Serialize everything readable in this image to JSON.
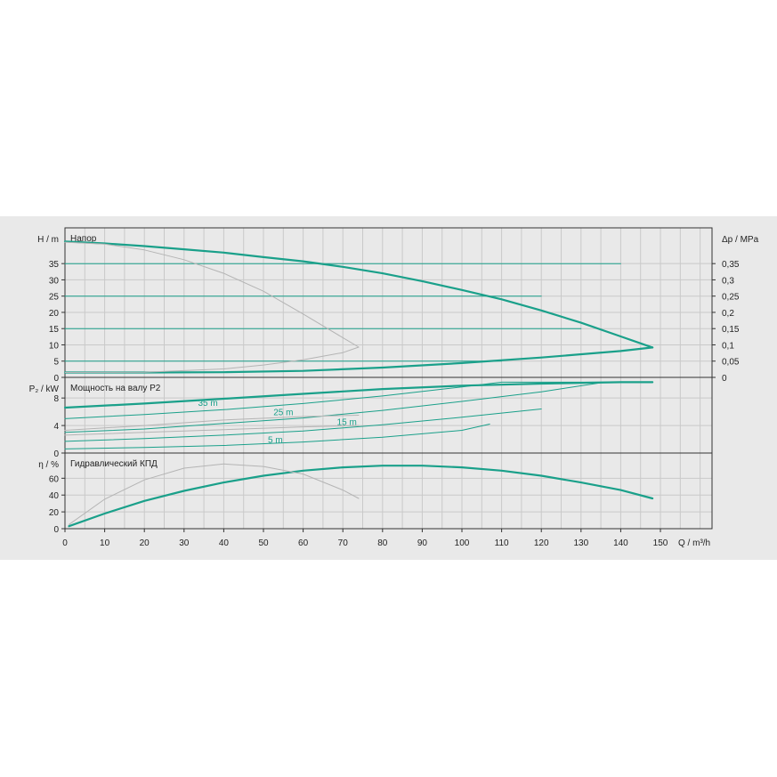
{
  "colors": {
    "accent": "#1aa08a",
    "secondary": "#b4b4b4",
    "grid": "#c9c9c9",
    "frame": "#333333",
    "background": "#e9e9e9"
  },
  "chart_data": [
    {
      "type": "line",
      "title": "Напор",
      "ylabel": "H / m",
      "ylabel_right": "Δp / MPa",
      "xlim": [
        0,
        163
      ],
      "ylim": [
        0,
        46
      ],
      "yticks": [
        0,
        5,
        10,
        15,
        20,
        25,
        30,
        35
      ],
      "yticks_right": [
        "0",
        "0,05",
        "0,1",
        "0,15",
        "0,2",
        "0,25",
        "0,3",
        "0,35"
      ],
      "series": [
        {
          "role": "max",
          "color": "accent",
          "width": 2.2,
          "x": [
            0,
            10,
            20,
            30,
            40,
            50,
            60,
            70,
            80,
            90,
            100,
            110,
            120,
            130,
            140,
            148
          ],
          "y": [
            41.8,
            41.2,
            40.4,
            39.4,
            38.4,
            37.0,
            35.7,
            34.0,
            32.0,
            29.6,
            26.9,
            24.0,
            20.6,
            16.8,
            12.6,
            9.2
          ]
        },
        {
          "role": "min",
          "color": "accent",
          "width": 2.2,
          "x": [
            0,
            20,
            40,
            60,
            80,
            100,
            120,
            140,
            148
          ],
          "y": [
            1.5,
            1.5,
            1.6,
            2.0,
            3.0,
            4.4,
            6.1,
            8.1,
            9.2
          ]
        },
        {
          "role": "h35",
          "color": "accent",
          "width": 1,
          "x": [
            0,
            10,
            20,
            30,
            40,
            50,
            60,
            70,
            80,
            90,
            100,
            110,
            120,
            130,
            140
          ],
          "y": [
            35,
            35,
            35,
            35,
            35,
            35,
            35,
            35,
            35,
            35,
            35,
            35,
            35,
            35,
            35
          ]
        },
        {
          "role": "h25",
          "color": "accent",
          "width": 1,
          "x": [
            0,
            10,
            20,
            30,
            40,
            50,
            60,
            70,
            80,
            90,
            100,
            110,
            120
          ],
          "y": [
            25,
            25,
            25,
            25,
            25,
            25,
            25,
            25,
            25,
            25,
            25,
            25,
            25
          ]
        },
        {
          "role": "h15",
          "color": "accent",
          "width": 1,
          "x": [
            0,
            10,
            20,
            30,
            40,
            50,
            60,
            70,
            80,
            90,
            100,
            110,
            120,
            130
          ],
          "y": [
            15,
            15,
            15,
            15,
            15,
            15,
            15,
            15,
            15,
            15,
            15,
            15,
            15,
            15
          ]
        },
        {
          "role": "h5",
          "color": "accent",
          "width": 1,
          "x": [
            0,
            10,
            20,
            30,
            40,
            50,
            60,
            70,
            80,
            90,
            100,
            110
          ],
          "y": [
            5,
            5,
            5,
            5,
            5,
            5,
            5,
            5,
            5,
            5,
            5,
            5
          ]
        },
        {
          "role": "gray-upper",
          "color": "secondary",
          "width": 1,
          "x": [
            0,
            10,
            20,
            30,
            40,
            50,
            60,
            70,
            74
          ],
          "y": [
            41.6,
            41.0,
            39.2,
            36.2,
            32.0,
            26.5,
            19.5,
            12.2,
            9.3
          ]
        },
        {
          "role": "gray-lower",
          "color": "secondary",
          "width": 1,
          "x": [
            0,
            20,
            40,
            50,
            60,
            70,
            74
          ],
          "y": [
            1.5,
            1.6,
            2.6,
            3.8,
            5.4,
            7.6,
            9.3
          ]
        }
      ]
    },
    {
      "type": "line",
      "title": "Мощность на валу P2",
      "ylabel": "P₂ / kW",
      "xlim": [
        0,
        163
      ],
      "ylim": [
        0,
        11
      ],
      "yticks": [
        0,
        4,
        8
      ],
      "series": [
        {
          "role": "max",
          "color": "accent",
          "width": 2.2,
          "x": [
            0,
            20,
            40,
            60,
            80,
            100,
            120,
            140,
            148
          ],
          "y": [
            6.6,
            7.2,
            7.9,
            8.6,
            9.3,
            9.8,
            10.1,
            10.3,
            10.3
          ]
        },
        {
          "role": "35m",
          "color": "accent",
          "width": 1,
          "x": [
            0,
            20,
            40,
            60,
            80,
            100,
            110,
            130,
            148
          ],
          "y": [
            5.0,
            5.6,
            6.3,
            7.2,
            8.3,
            9.6,
            10.3,
            10.3,
            10.3
          ]
        },
        {
          "role": "25m",
          "color": "accent",
          "width": 1,
          "x": [
            0,
            20,
            40,
            60,
            80,
            100,
            120,
            136
          ],
          "y": [
            3.0,
            3.5,
            4.3,
            5.1,
            6.2,
            7.5,
            8.9,
            10.3
          ]
        },
        {
          "role": "15m",
          "color": "accent",
          "width": 1,
          "x": [
            0,
            20,
            40,
            60,
            80,
            100,
            120
          ],
          "y": [
            1.7,
            2.1,
            2.6,
            3.2,
            4.1,
            5.2,
            6.4
          ]
        },
        {
          "role": "5m",
          "color": "accent",
          "width": 1,
          "x": [
            0,
            20,
            40,
            60,
            80,
            100,
            107
          ],
          "y": [
            0.6,
            0.8,
            1.1,
            1.6,
            2.3,
            3.3,
            4.2
          ]
        },
        {
          "role": "gray-upper",
          "color": "secondary",
          "width": 1,
          "x": [
            0,
            20,
            40,
            60,
            74
          ],
          "y": [
            3.3,
            4.0,
            4.8,
            5.3,
            5.5
          ]
        },
        {
          "role": "gray-lower",
          "color": "secondary",
          "width": 1,
          "x": [
            0,
            20,
            40,
            60,
            74
          ],
          "y": [
            2.6,
            3.0,
            3.4,
            3.8,
            4.0
          ]
        }
      ],
      "curve_labels": [
        {
          "text": "35 m",
          "x": 36,
          "y": 7.4
        },
        {
          "text": "25 m",
          "x": 55,
          "y": 6.0
        },
        {
          "text": "15 m",
          "x": 71,
          "y": 4.6
        },
        {
          "text": "5 m",
          "x": 53,
          "y": 2.0
        }
      ]
    },
    {
      "type": "line",
      "title": "Гидравлический КПД",
      "ylabel": "η / %",
      "xlabel": "Q / m³/h",
      "xlim": [
        0,
        163
      ],
      "ylim": [
        0,
        90
      ],
      "yticks": [
        0,
        20,
        40,
        60
      ],
      "xticks": [
        0,
        10,
        20,
        30,
        40,
        50,
        60,
        70,
        80,
        90,
        100,
        110,
        120,
        130,
        140,
        150
      ],
      "series": [
        {
          "role": "efficiency",
          "color": "accent",
          "width": 2.2,
          "x": [
            1,
            10,
            20,
            30,
            40,
            50,
            60,
            70,
            80,
            90,
            100,
            110,
            120,
            130,
            140,
            148
          ],
          "y": [
            3,
            18,
            33,
            45,
            55,
            63,
            69,
            73,
            75,
            75,
            73,
            69,
            63,
            55,
            46,
            36
          ]
        },
        {
          "role": "gray",
          "color": "secondary",
          "width": 1,
          "x": [
            1,
            10,
            20,
            30,
            40,
            50,
            60,
            70,
            74
          ],
          "y": [
            5,
            35,
            58,
            72,
            77,
            74,
            65,
            46,
            36
          ]
        }
      ]
    }
  ]
}
